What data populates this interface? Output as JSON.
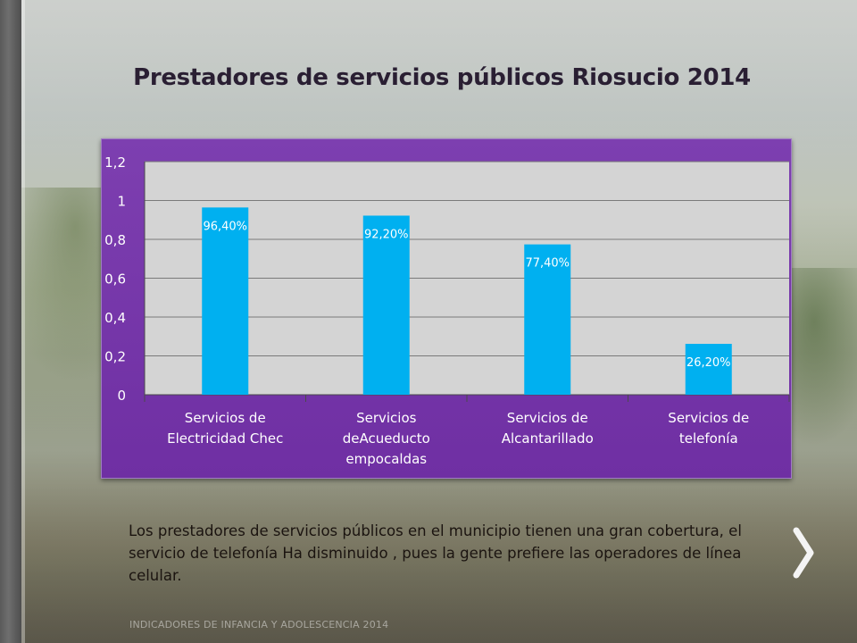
{
  "slide": {
    "title": "Prestadores de servicios públicos  Riosucio 2014",
    "caption": "Los prestadores de servicios públicos en el municipio tienen una gran cobertura, el servicio de telefonía Ha disminuido , pues la gente prefiere las operadores de línea celular.",
    "footer": "INDICADORES DE INFANCIA Y ADOLESCENCIA 2014",
    "next_icon": "chevron-right-icon"
  },
  "colors": {
    "chart_panel": "#7138a8",
    "plot_area": "#d4d4d4",
    "bar": "#00b0f0",
    "data_label": "#ffffff",
    "axis_text": "#ffffff"
  },
  "chart_data": {
    "type": "bar",
    "categories": [
      [
        "Servicios de",
        "Electricidad Chec"
      ],
      [
        "Servicios",
        "deAcueducto",
        "empocaldas"
      ],
      [
        "Servicios de",
        "Alcantarillado"
      ],
      [
        "Servicios de",
        "telefonía"
      ]
    ],
    "values": [
      0.964,
      0.922,
      0.774,
      0.262
    ],
    "data_labels": [
      "96,40%",
      "92,20%",
      "77,40%",
      "26,20%"
    ],
    "yticks": [
      "0",
      "0,2",
      "0,4",
      "0,6",
      "0,8",
      "1",
      "1,2"
    ],
    "ytick_values": [
      0,
      0.2,
      0.4,
      0.6,
      0.8,
      1.0,
      1.2
    ],
    "ylim": [
      0,
      1.2
    ],
    "grid": true,
    "legend": "none"
  }
}
